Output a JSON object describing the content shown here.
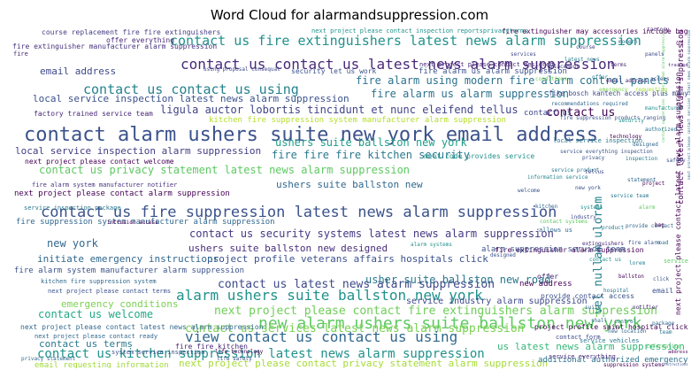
{
  "title": "Word Cloud for alarmandsuppression.com",
  "chart_data": {
    "type": "wordcloud",
    "title": "Word Cloud for alarmandsuppression.com",
    "colormap": "viridis",
    "words": [
      {
        "text": "contact alarm ushers suite new york email address",
        "color": "#3b528b"
      },
      {
        "text": "new alarm ushers suite ballston new york",
        "color": "#5ec962"
      },
      {
        "text": "contact us fire suppression latest news alarm suppression",
        "color": "#3b528b"
      },
      {
        "text": "view contact us contact us using",
        "color": "#31688e"
      },
      {
        "text": "alarm ushers suite ballston new york",
        "color": "#21918c"
      },
      {
        "text": "contact us contact us latest news alarm suppression",
        "color": "#482878"
      },
      {
        "text": "contact us fire extinguishers latest news alarm suppression",
        "color": "#21918c"
      },
      {
        "text": "contact us contact us using",
        "color": "#26828e"
      },
      {
        "text": "contact us kitchen suppression latest news alarm suppression",
        "color": "#21918c"
      },
      {
        "text": "next project please contact fire extinguishers alarm suppression",
        "color": "#6ece58"
      },
      {
        "text": "contact us services latest news alarm suppression",
        "color": "#7ad151"
      },
      {
        "text": "contact us latest news alarm suppression",
        "color": "#3e4989"
      },
      {
        "text": "contact us security systems latest news alarm suppression",
        "color": "#443983"
      },
      {
        "text": "fire alarm using modern fire alarm control panels",
        "color": "#2c728e"
      },
      {
        "text": "ligula auctor lobortis tincidunt et nunc eleifend tellus",
        "color": "#414487"
      },
      {
        "text": "contact us privacy statement latest news alarm suppression",
        "color": "#5ec962"
      },
      {
        "text": "local service inspection latest news alarm suppression",
        "color": "#3b528b"
      },
      {
        "text": "local service inspection alarm suppression",
        "color": "#433e85"
      },
      {
        "text": "fire fire fire kitchen security",
        "color": "#2a788e"
      },
      {
        "text": "ushers suite ballston new york",
        "color": "#1f9e89"
      },
      {
        "text": "ushers suite ballston new",
        "color": "#31688e"
      },
      {
        "text": "ushers suite ballston new designed",
        "color": "#472d7b"
      },
      {
        "text": "usher suite ballston new road",
        "color": "#2a788e"
      },
      {
        "text": "fire alarm us alarm suppression",
        "color": "#2c728e"
      },
      {
        "text": "project profile veterans affairs hospitals click",
        "color": "#3b528b"
      },
      {
        "text": "initiate emergency instructions",
        "color": "#31688e"
      },
      {
        "text": "next project please contact privacy statement alarm suppression",
        "color": "#a5db36"
      },
      {
        "text": "us latest news alarm suppression",
        "color": "#35b779"
      },
      {
        "text": "email address",
        "color": "#3e4989"
      },
      {
        "text": "contact us welcome",
        "color": "#22a884"
      },
      {
        "text": "contact us terms",
        "color": "#2a788e"
      },
      {
        "text": "contact us",
        "color": "#440154"
      },
      {
        "text": "new york",
        "color": "#31688e"
      },
      {
        "text": "emergency conditions",
        "color": "#7ad151"
      },
      {
        "text": "email requesting information",
        "color": "#a0da39"
      },
      {
        "text": "additional authorized emergency",
        "color": "#2c728e"
      },
      {
        "text": "vel nullam ulorem",
        "color": "#26828e"
      },
      {
        "text": "kitchen fire suppression system manufacturer alarm suppression",
        "color": "#b5de2b"
      },
      {
        "text": "next project please contact alarm suppression",
        "color": "#440154"
      },
      {
        "text": "fire suppression system manufacturer alarm suppression",
        "color": "#31688e"
      },
      {
        "text": "fire alarm system manufacturer alarm suppression",
        "color": "#3b528b"
      },
      {
        "text": "fire extinguisher manufacturer alarm suppression",
        "color": "#46327e"
      },
      {
        "text": "course replacement fire fire extinguishers",
        "color": "#433e85"
      },
      {
        "text": "next project please contact welcome",
        "color": "#440154"
      },
      {
        "text": "factory trained service team",
        "color": "#482878"
      },
      {
        "text": "service industry alarm suppression",
        "color": "#3e4989"
      },
      {
        "text": "next project please contact latest news alarm suppression",
        "color": "#31688e"
      },
      {
        "text": "fire alarm us alarm suppression",
        "color": "#3b528b"
      },
      {
        "text": "fire extinguisher alarm suppression",
        "color": "#440154"
      },
      {
        "text": "fire alarm system manufacturer notifier",
        "color": "#46327e"
      },
      {
        "text": "contact us services latest news alarm suppression",
        "color": "#5ec962"
      },
      {
        "text": "security let us work",
        "color": "#3b528b"
      },
      {
        "text": "next project please contact latest news alarm suppression",
        "color": "#440154"
      },
      {
        "text": "meet code provides service",
        "color": "#21918c"
      },
      {
        "text": "alarm suppression service team",
        "color": "#3b528b"
      },
      {
        "text": "contact us",
        "color": "#3e4989"
      },
      {
        "text": "fire extinguisher may accessories include bag",
        "color": "#440154"
      },
      {
        "text": "offer everything",
        "color": "#482878"
      },
      {
        "text": "project profile saint hospital click",
        "color": "#440154"
      },
      {
        "text": "fire fire kitchen",
        "color": "#482878"
      },
      {
        "text": "next project please contact terms",
        "color": "#3b528b"
      },
      {
        "text": "next project please contact ready",
        "color": "#31688e"
      },
      {
        "text": "provide contact access",
        "color": "#3b528b"
      },
      {
        "text": "service inspection package",
        "color": "#2a788e"
      },
      {
        "text": "kitchen fire suppression system",
        "color": "#31688e"
      },
      {
        "text": "fike bosch kantech access plus many",
        "color": "#3e4989"
      },
      {
        "text": "new address",
        "color": "#440154"
      },
      {
        "text": "service",
        "color": "#5ec962"
      },
      {
        "text": "email",
        "color": "#3b528b"
      },
      {
        "text": "offer",
        "color": "#482878"
      },
      {
        "text": "contact form",
        "color": "#3e4989"
      },
      {
        "text": "service everything",
        "color": "#482878"
      },
      {
        "text": "contact form shall",
        "color": "#31688e"
      },
      {
        "text": "service vehicles",
        "color": "#2a788e"
      },
      {
        "text": "system service inspection",
        "color": "#3b528b"
      },
      {
        "text": "please contact alarm suppression",
        "color": "#3b528b"
      },
      {
        "text": "local service inspection",
        "color": "#2a788e"
      },
      {
        "text": "contact latest news alarm suppression",
        "color": "#440154"
      },
      {
        "text": "next project please contact services latest news alarm suppression",
        "color": "#31688e"
      },
      {
        "text": "next project please contact designed",
        "color": "#482878"
      },
      {
        "text": "next project please contact inspection reportsprivacyterms",
        "color": "#21918c"
      },
      {
        "text": "service everything inspection",
        "color": "#3b528b"
      },
      {
        "text": "us",
        "color": "#440154"
      },
      {
        "text": "fire",
        "color": "#482878"
      },
      {
        "text": "allows us",
        "color": "#31688e"
      },
      {
        "text": "life technology",
        "color": "#440154"
      },
      {
        "text": "recommendations required",
        "color": "#31688e"
      },
      {
        "text": "fire suppression products ranging",
        "color": "#3b528b"
      },
      {
        "text": "intrusion access",
        "color": "#440154"
      },
      {
        "text": "life safety",
        "color": "#3b528b"
      },
      {
        "text": "privacy statement",
        "color": "#31688e"
      },
      {
        "text": "contact systems",
        "color": "#5ec962"
      },
      {
        "text": "using proposal consequat",
        "color": "#3e4989"
      },
      {
        "text": "service product",
        "color": "#2a788e"
      },
      {
        "text": "alarm systems",
        "color": "#21918c"
      },
      {
        "text": "new location",
        "color": "#31688e"
      },
      {
        "text": "designed",
        "color": "#3b528b"
      },
      {
        "text": "new york inspection",
        "color": "#440154"
      },
      {
        "text": "information service",
        "color": "#26828e"
      },
      {
        "text": "email address",
        "color": "#482878"
      },
      {
        "text": "fire alarm",
        "color": "#3b528b"
      },
      {
        "text": "provide contact",
        "color": "#31688e"
      },
      {
        "text": "service team",
        "color": "#2a788e"
      },
      {
        "text": "suppression systems",
        "color": "#440154"
      },
      {
        "text": "information",
        "color": "#5ec962"
      },
      {
        "text": "contact us",
        "color": "#21918c"
      },
      {
        "text": "new york",
        "color": "#3b528b"
      },
      {
        "text": "kitchen",
        "color": "#31688e"
      },
      {
        "text": "extinguishers",
        "color": "#482878"
      },
      {
        "text": "alarm",
        "color": "#5ec962"
      },
      {
        "text": "services",
        "color": "#3e4989"
      },
      {
        "text": "latest news",
        "color": "#26828e"
      },
      {
        "text": "emergency",
        "color": "#7ad151"
      },
      {
        "text": "inspection",
        "color": "#2a788e"
      },
      {
        "text": "privacy",
        "color": "#3b528b"
      },
      {
        "text": "project",
        "color": "#440154"
      },
      {
        "text": "designed",
        "color": "#31688e"
      },
      {
        "text": "manufacturer",
        "color": "#21918c"
      },
      {
        "text": "terms",
        "color": "#482878"
      },
      {
        "text": "ready",
        "color": "#5ec962"
      },
      {
        "text": "welcome",
        "color": "#3b528b"
      },
      {
        "text": "offer",
        "color": "#26828e"
      },
      {
        "text": "ballston",
        "color": "#440154"
      },
      {
        "text": "suite",
        "color": "#31688e"
      },
      {
        "text": "hospital",
        "color": "#2a788e"
      },
      {
        "text": "panels",
        "color": "#3e4989"
      },
      {
        "text": "security",
        "color": "#21918c"
      },
      {
        "text": "notifier",
        "color": "#482878"
      },
      {
        "text": "package",
        "color": "#31688e"
      },
      {
        "text": "conditions",
        "color": "#7ad151"
      },
      {
        "text": "instructions",
        "color": "#3b528b"
      },
      {
        "text": "requesting",
        "color": "#a0da39"
      },
      {
        "text": "authorized",
        "color": "#2c728e"
      },
      {
        "text": "tellus",
        "color": "#414487"
      },
      {
        "text": "lorem",
        "color": "#26828e"
      },
      {
        "text": "bag",
        "color": "#440154"
      },
      {
        "text": "road",
        "color": "#2a788e"
      },
      {
        "text": "click",
        "color": "#3b528b"
      },
      {
        "text": "access",
        "color": "#3b528b"
      },
      {
        "text": "shall",
        "color": "#31688e"
      },
      {
        "text": "vehicles",
        "color": "#2a788e"
      },
      {
        "text": "address",
        "color": "#440154"
      },
      {
        "text": "location",
        "color": "#31688e"
      },
      {
        "text": "technology",
        "color": "#440154"
      },
      {
        "text": "safety",
        "color": "#3b528b"
      },
      {
        "text": "statement",
        "color": "#31688e"
      },
      {
        "text": "product",
        "color": "#2a788e"
      },
      {
        "text": "systems",
        "color": "#21918c"
      },
      {
        "text": "team",
        "color": "#2a788e"
      },
      {
        "text": "industry",
        "color": "#3e4989"
      },
      {
        "text": "factory",
        "color": "#482878"
      },
      {
        "text": "trained",
        "color": "#482878"
      },
      {
        "text": "course",
        "color": "#433e85"
      },
      {
        "text": "replacement",
        "color": "#433e85"
      },
      {
        "text": "modern",
        "color": "#2c728e"
      },
      {
        "text": "control",
        "color": "#2c728e"
      }
    ]
  }
}
